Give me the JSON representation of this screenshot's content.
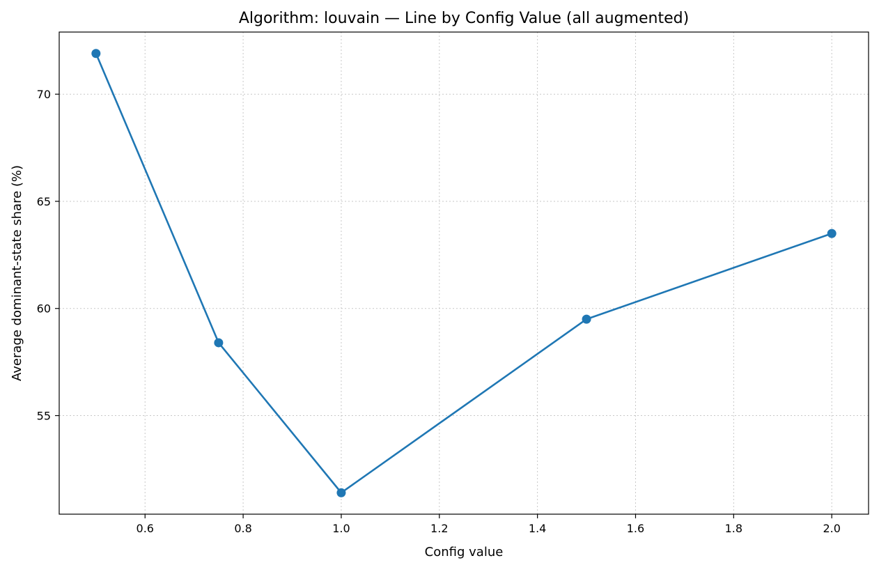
{
  "chart_data": {
    "type": "line",
    "title": "Algorithm: louvain — Line by Config Value (all augmented)",
    "xlabel": "Config value",
    "ylabel": "Average dominant-state share (%)",
    "xlim": [
      0.425,
      2.075
    ],
    "ylim": [
      50.4,
      72.9
    ],
    "x_ticks": [
      0.6,
      0.8,
      1.0,
      1.2,
      1.4,
      1.6,
      1.8,
      2.0
    ],
    "x_tick_labels": [
      "0.6",
      "0.8",
      "1.0",
      "1.2",
      "1.4",
      "1.6",
      "1.8",
      "2.0"
    ],
    "y_ticks": [
      55,
      60,
      65,
      70
    ],
    "y_tick_labels": [
      "55",
      "60",
      "65",
      "70"
    ],
    "grid": true,
    "series": [
      {
        "x": [
          0.5,
          0.75,
          1.0,
          1.5,
          2.0
        ],
        "y": [
          71.9,
          58.4,
          51.4,
          59.5,
          63.5
        ],
        "color": "#1f77b4",
        "marker": "circle"
      }
    ]
  }
}
